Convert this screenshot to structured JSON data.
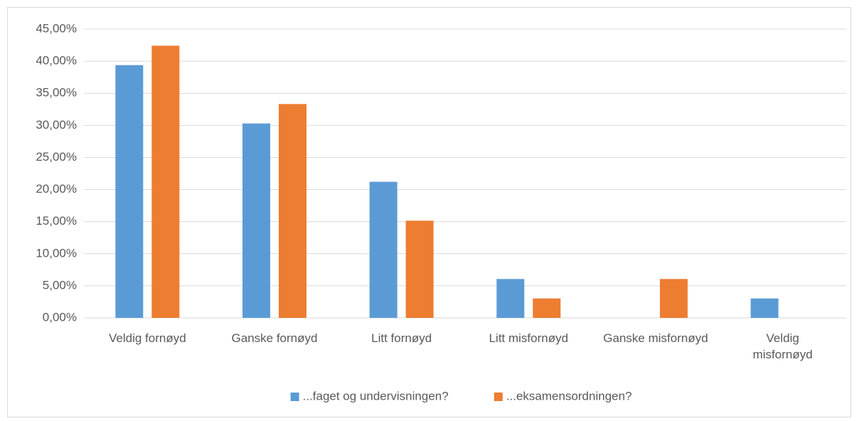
{
  "chart_data": {
    "type": "bar",
    "categories": [
      "Veldig fornøyd",
      "Ganske fornøyd",
      "Litt fornøyd",
      "Litt misfornøyd",
      "Ganske misfornøyd",
      "Veldig misfornøyd"
    ],
    "series": [
      {
        "name": "...faget og undervisningen?",
        "color": "#5b9bd5",
        "values": [
          39.39,
          30.3,
          21.21,
          6.06,
          0,
          3.03
        ]
      },
      {
        "name": "...eksamensordningen?",
        "color": "#ed7d31",
        "values": [
          42.42,
          33.33,
          15.15,
          3.03,
          6.06,
          0
        ]
      }
    ],
    "ylim": [
      0,
      45
    ],
    "yticks": [
      {
        "value": 0,
        "label": "0,00%"
      },
      {
        "value": 5,
        "label": "5,00%"
      },
      {
        "value": 10,
        "label": "10,00%"
      },
      {
        "value": 15,
        "label": "15,00%"
      },
      {
        "value": 20,
        "label": "20,00%"
      },
      {
        "value": 25,
        "label": "25,00%"
      },
      {
        "value": 30,
        "label": "30,00%"
      },
      {
        "value": 35,
        "label": "35,00%"
      },
      {
        "value": 40,
        "label": "40,00%"
      },
      {
        "value": 45,
        "label": "45,00%"
      }
    ],
    "grid": true,
    "legend": "bottom"
  }
}
